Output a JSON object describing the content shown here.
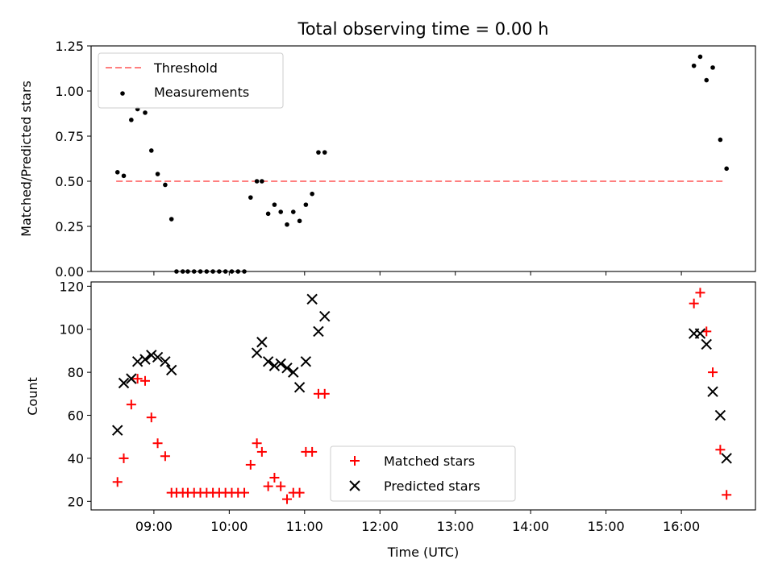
{
  "title": "Total observing time = 0.00 h",
  "xlabel": "Time (UTC)",
  "colors": {
    "threshold": "#ff7f7f",
    "measurements": "#000000",
    "matched": "#ff0000",
    "predicted": "#000000"
  },
  "chart_data": [
    {
      "type": "scatter",
      "ylabel": "Matched/Predicted stars",
      "ylim": [
        0,
        1.25
      ],
      "yticks": [
        "0.00",
        "0.25",
        "0.50",
        "0.75",
        "1.00",
        "1.25"
      ],
      "xlim": [
        "08:10",
        "16:59"
      ],
      "legend": {
        "placement": "top-left",
        "entries": [
          "Threshold",
          "Measurements"
        ]
      },
      "series": [
        {
          "name": "Threshold",
          "kind": "dashed-line",
          "x": [
            "08:30",
            "16:35"
          ],
          "y": [
            0.5,
            0.5
          ]
        },
        {
          "name": "Measurements",
          "kind": "dot",
          "x": [
            "08:31",
            "08:36",
            "08:42",
            "08:47",
            "08:53",
            "08:58",
            "09:03",
            "09:09",
            "09:14",
            "09:18",
            "09:23",
            "09:27",
            "09:32",
            "09:37",
            "09:42",
            "09:47",
            "09:52",
            "09:57",
            "10:02",
            "10:07",
            "10:12",
            "10:17",
            "10:22",
            "10:26",
            "10:31",
            "10:36",
            "10:41",
            "10:46",
            "10:51",
            "10:56",
            "11:01",
            "11:06",
            "11:11",
            "11:16",
            "16:10",
            "16:15",
            "16:20",
            "16:25",
            "16:31",
            "16:36"
          ],
          "y": [
            0.55,
            0.53,
            0.84,
            0.9,
            0.88,
            0.67,
            0.54,
            0.48,
            0.29,
            0.0,
            0.0,
            0.0,
            0.0,
            0.0,
            0.0,
            0.0,
            0.0,
            0.0,
            0.0,
            0.0,
            0.0,
            0.41,
            0.5,
            0.5,
            0.32,
            0.37,
            0.33,
            0.26,
            0.33,
            0.28,
            0.37,
            0.43,
            0.66,
            0.66,
            1.14,
            1.19,
            1.06,
            1.13,
            0.73,
            0.57
          ]
        }
      ]
    },
    {
      "type": "scatter",
      "ylabel": "Count",
      "ylim": [
        16,
        122
      ],
      "yticks": [
        "20",
        "40",
        "60",
        "80",
        "100",
        "120"
      ],
      "xlim": [
        "08:10",
        "16:59"
      ],
      "xticks": [
        "09:00",
        "10:00",
        "11:00",
        "12:00",
        "13:00",
        "14:00",
        "15:00",
        "16:00"
      ],
      "legend": {
        "placement": "bottom-center",
        "entries": [
          "Matched stars",
          "Predicted stars"
        ]
      },
      "series": [
        {
          "name": "Matched stars",
          "marker": "+",
          "x": [
            "08:31",
            "08:36",
            "08:42",
            "08:47",
            "08:53",
            "08:58",
            "09:03",
            "09:09",
            "09:14",
            "09:18",
            "09:23",
            "09:27",
            "09:32",
            "09:37",
            "09:42",
            "09:47",
            "09:52",
            "09:57",
            "10:02",
            "10:07",
            "10:12",
            "10:17",
            "10:22",
            "10:26",
            "10:31",
            "10:36",
            "10:41",
            "10:46",
            "10:51",
            "10:56",
            "11:01",
            "11:06",
            "11:11",
            "11:16",
            "16:10",
            "16:15",
            "16:20",
            "16:25",
            "16:31",
            "16:36"
          ],
          "y": [
            29,
            40,
            65,
            77,
            76,
            59,
            47,
            41,
            24,
            24,
            24,
            24,
            24,
            24,
            24,
            24,
            24,
            24,
            24,
            24,
            24,
            37,
            47,
            43,
            27,
            31,
            27,
            21,
            24,
            24,
            43,
            43,
            70,
            70,
            112,
            117,
            99,
            80,
            44,
            23
          ]
        },
        {
          "name": "Predicted stars",
          "marker": "x",
          "x": [
            "08:31",
            "08:36",
            "08:42",
            "08:47",
            "08:53",
            "08:58",
            "09:03",
            "09:09",
            "09:14",
            "10:22",
            "10:26",
            "10:31",
            "10:36",
            "10:41",
            "10:46",
            "10:51",
            "10:56",
            "11:01",
            "11:06",
            "11:11",
            "11:16",
            "16:10",
            "16:15",
            "16:20",
            "16:25",
            "16:31",
            "16:36"
          ],
          "y": [
            53,
            75,
            77,
            85,
            86,
            88,
            87,
            85,
            81,
            89,
            94,
            85,
            83,
            84,
            82,
            80,
            73,
            85,
            114,
            99,
            106,
            98,
            98,
            93,
            71,
            60,
            40
          ]
        }
      ]
    }
  ]
}
